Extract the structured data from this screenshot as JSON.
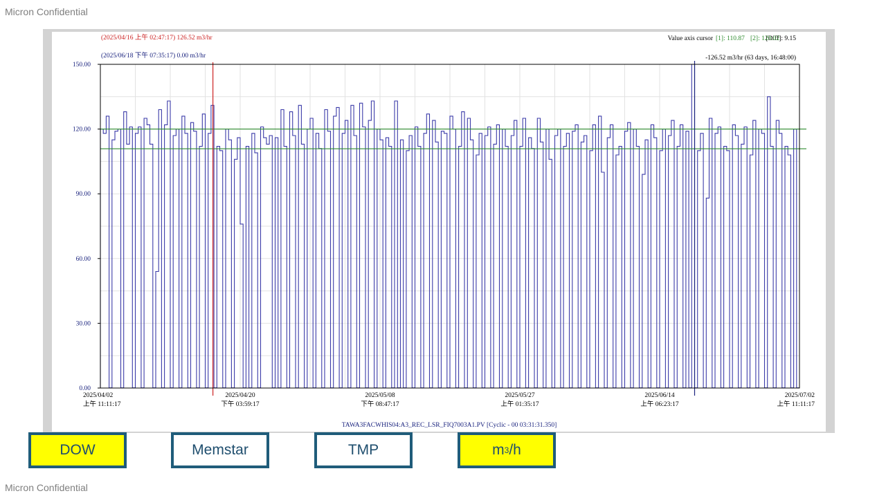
{
  "footer": {
    "confidential_top": "Micron Confidential",
    "confidential_bottom": "Micron Confidential"
  },
  "tags": [
    {
      "label": "DOW",
      "bg": "#ffff00"
    },
    {
      "label": "Memstar",
      "bg": "#ffffff"
    },
    {
      "label": "TMP",
      "bg": "#ffffff"
    },
    {
      "unit_base": "m",
      "unit_exp": "3",
      "unit_suffix": "/h",
      "bg": "#ffff00"
    }
  ],
  "chart_data": {
    "type": "line",
    "title": "",
    "xlabel": "",
    "ylabel": "",
    "series_label": "TAWA3FACWHIS04:A3_REC_LSR_FIQ7003A1.PV [Cyclic - 00 03:31:31.350]",
    "ylim": [
      0,
      150
    ],
    "y_ticks": [
      "0.00",
      "30.00",
      "60.00",
      "90.00",
      "120.00",
      "150.00"
    ],
    "x_ticks": [
      {
        "date": "2025/04/02",
        "time": "上午 11:11:17"
      },
      {
        "date": "2025/04/20",
        "time": "下午 03:59:17"
      },
      {
        "date": "2025/05/08",
        "time": "下午 08:47:17"
      },
      {
        "date": "2025/05/27",
        "time": "上午 01:35:17"
      },
      {
        "date": "2025/06/14",
        "time": "上午 06:23:17"
      },
      {
        "date": "2025/07/02",
        "time": "上午 11:11:17"
      }
    ],
    "grid": true,
    "cursor1": {
      "label": "(2025/04/16 上午 02:47:17) 126.52 m3/hr",
      "color": "#cc2222"
    },
    "cursor2": {
      "label": "(2025/06/18 下午 07:35:17) 0.00 m3/hr",
      "color": "#1a237e"
    },
    "cursor_diff": "-126.52 m3/hr (63 days, 16:48:00)",
    "value_cursor": {
      "label": "Value axis cursor",
      "c1": "[1]: 110.87",
      "c2": "[2]: 120.02",
      "diff": "[Diff]: 9.15",
      "values": [
        110.87,
        120.02
      ],
      "color": "#2e8b2e"
    },
    "series": [
      {
        "color": "#3a3aa8",
        "fill": "#7c7cc8",
        "pattern": [
          120,
          118,
          126,
          0,
          115,
          119,
          120,
          0,
          128,
          113,
          121,
          0,
          118,
          121,
          0,
          125,
          122,
          113,
          0,
          54,
          129,
          0,
          122,
          133,
          0,
          117,
          120,
          0,
          126,
          118,
          0,
          123,
          119,
          0,
          112,
          127,
          0,
          118,
          131,
          0,
          112,
          110,
          0,
          120,
          115,
          0,
          106,
          116,
          76,
          0,
          112,
          0,
          118,
          109,
          0,
          121,
          116,
          113,
          117,
          0,
          116,
          0,
          129,
          112,
          0,
          128,
          117,
          0,
          131,
          113,
          0,
          120,
          125,
          0,
          118,
          111,
          0,
          129,
          119,
          0,
          126,
          130,
          0,
          118,
          124,
          0,
          131,
          117,
          0,
          132,
          121,
          0,
          124,
          133,
          0,
          120,
          115,
          0,
          116,
          112,
          0,
          133,
          0,
          115,
          0,
          110,
          117,
          0,
          121,
          112,
          0,
          118,
          127,
          0,
          124,
          114,
          0,
          119,
          118,
          0,
          126,
          120,
          0,
          112,
          128,
          0,
          125,
          115,
          0,
          108,
          118,
          0,
          117,
          121,
          0,
          113,
          122,
          0,
          120,
          112,
          0,
          117,
          124,
          0,
          112,
          125,
          0,
          116,
          111,
          0,
          125,
          114,
          0,
          120,
          106,
          0,
          117,
          120,
          0,
          112,
          118,
          0,
          119,
          122,
          0,
          114,
          117,
          0,
          110,
          122,
          0,
          126,
          100,
          0,
          116,
          122,
          0,
          108,
          112,
          0,
          119,
          123,
          0,
          120,
          112,
          0,
          99,
          115,
          0,
          122,
          116,
          0,
          110,
          120,
          0,
          117,
          124,
          0,
          112,
          122,
          0,
          119,
          0,
          150,
          0,
          110,
          118,
          0,
          88,
          125,
          0,
          118,
          121,
          0,
          112,
          110,
          0,
          122,
          117,
          0,
          113,
          121,
          0,
          108,
          124,
          0,
          120,
          118,
          0,
          135,
          112,
          0,
          124,
          118,
          0,
          112,
          108,
          0,
          120,
          0
        ],
        "drops": 175
      }
    ]
  }
}
